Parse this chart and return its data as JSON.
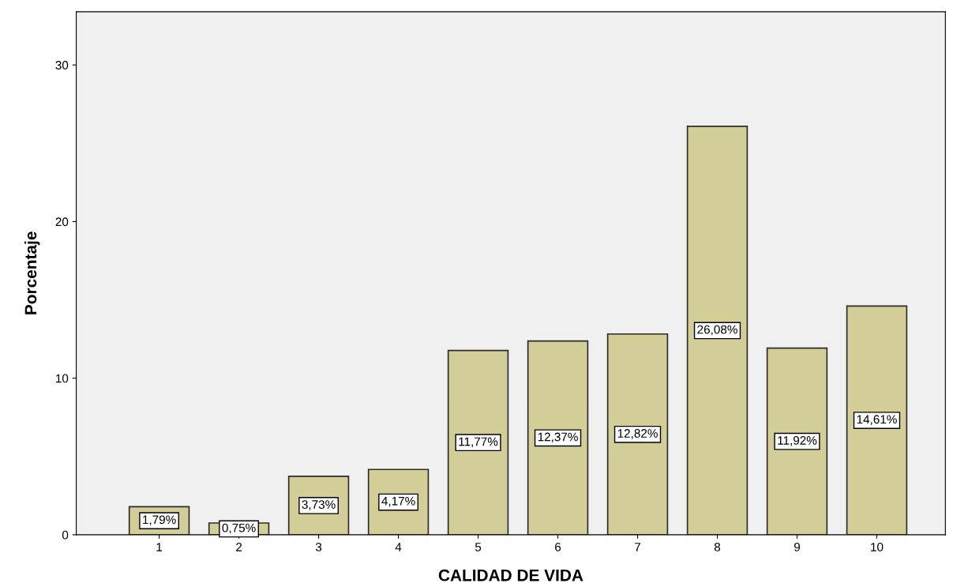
{
  "chart_data": {
    "type": "bar",
    "xlabel": "CALIDAD DE VIDA",
    "ylabel": "Porcentaje",
    "categories": [
      "1",
      "2",
      "3",
      "4",
      "5",
      "6",
      "7",
      "8",
      "9",
      "10"
    ],
    "values": [
      1.79,
      0.75,
      3.73,
      4.17,
      11.77,
      12.37,
      12.82,
      26.08,
      11.92,
      14.61
    ],
    "value_labels": [
      "1,79%",
      "0,75%",
      "3,73%",
      "4,17%",
      "11,77%",
      "12,37%",
      "12,82%",
      "26,08%",
      "11,92%",
      "14,61%"
    ],
    "color": "#d3ce97",
    "ylim": [
      0,
      33.4
    ],
    "yticks": [
      0,
      10,
      20,
      30
    ],
    "grid": false
  }
}
